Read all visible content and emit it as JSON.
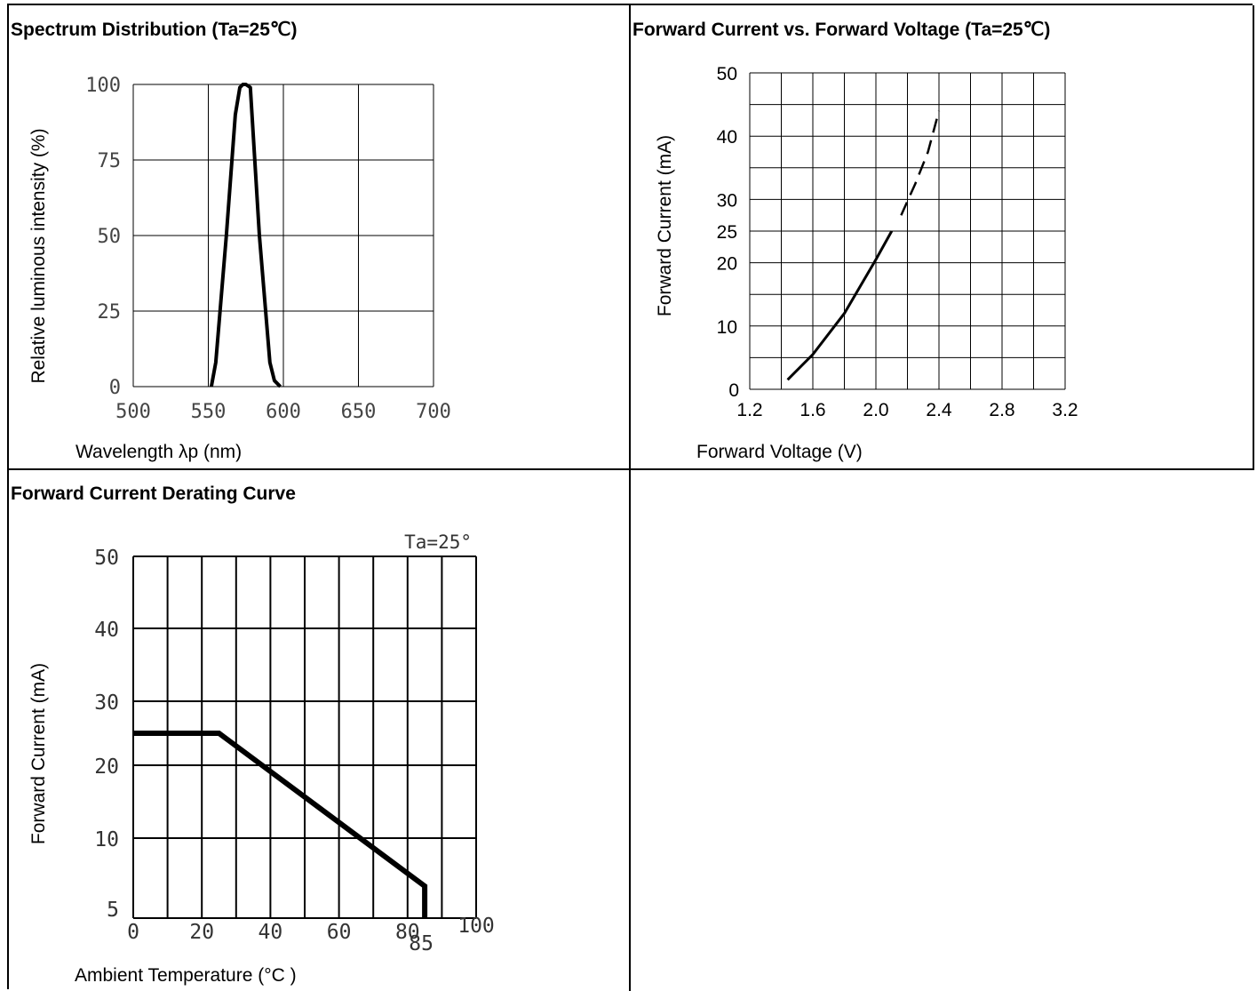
{
  "chart_data": [
    {
      "type": "line",
      "title": "Spectrum Distribution (Ta=25℃)",
      "xlabel": "Wavelength λp (nm)",
      "ylabel": "Relative luminous intensity (%)",
      "xlim": [
        500,
        700
      ],
      "ylim": [
        0,
        100
      ],
      "x_ticks": [
        "500",
        "550",
        "600",
        "650",
        "700"
      ],
      "y_ticks": [
        "0",
        "25",
        "50",
        "75",
        "100"
      ],
      "grid": true,
      "series": [
        {
          "x": [
            552,
            555,
            562,
            568,
            571,
            573,
            575,
            578,
            584,
            591,
            594,
            598
          ],
          "y": [
            0,
            8,
            50,
            90,
            99,
            100,
            100,
            99,
            50,
            8,
            2,
            0
          ]
        }
      ]
    },
    {
      "type": "line",
      "title": "Forward Current vs. Forward Voltage (Ta=25℃)",
      "xlabel": "Forward Voltage (V)",
      "ylabel": "Forward Current (mA)",
      "xlim": [
        1.2,
        3.2
      ],
      "ylim": [
        0,
        50
      ],
      "x_ticks": [
        "1.2",
        "1.6",
        "2.0",
        "2.4",
        "2.8",
        "3.2"
      ],
      "y_ticks": [
        "0",
        "10",
        "20",
        "25",
        "30",
        "40",
        "50"
      ],
      "grid": true,
      "series": [
        {
          "style": "solid",
          "x": [
            1.44,
            1.6,
            1.8,
            2.0,
            2.1
          ],
          "y": [
            1.5,
            5.5,
            12,
            20.5,
            25
          ]
        },
        {
          "style": "dashed",
          "x": [
            2.16,
            2.25,
            2.33,
            2.4
          ],
          "y": [
            27.5,
            32.5,
            37.5,
            44
          ]
        }
      ]
    },
    {
      "type": "line",
      "title": "Forward Current Derating Curve",
      "annotation": "Ta=25°",
      "xlabel": "Ambient Temperature (°C )",
      "ylabel": "Forward Current (mA)",
      "xlim": [
        0,
        100
      ],
      "ylim": [
        5,
        50
      ],
      "x_ticks": [
        "0",
        "20",
        "40",
        "60",
        "80",
        "100"
      ],
      "x_extra_tick": "85",
      "y_ticks": [
        "5",
        "10",
        "20",
        "30",
        "40",
        "50"
      ],
      "grid": true,
      "series": [
        {
          "x": [
            0,
            25,
            85,
            85
          ],
          "y": [
            25,
            25,
            7,
            5
          ]
        }
      ]
    }
  ]
}
